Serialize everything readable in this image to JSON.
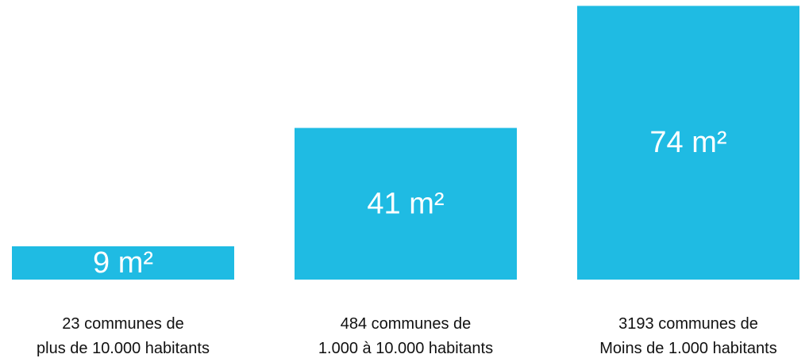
{
  "chart_data": {
    "type": "bar",
    "categories": [
      "23 communes de\nplus de 10.000 habitants",
      "484 communes de\n1.000 à 10.000 habitants",
      "3193 communes de\nMoins de 1.000 habitants"
    ],
    "values": [
      9,
      41,
      74
    ],
    "value_labels": [
      "9 m²",
      "41 m²",
      "74 m²"
    ],
    "color": "#1fbbe3"
  }
}
